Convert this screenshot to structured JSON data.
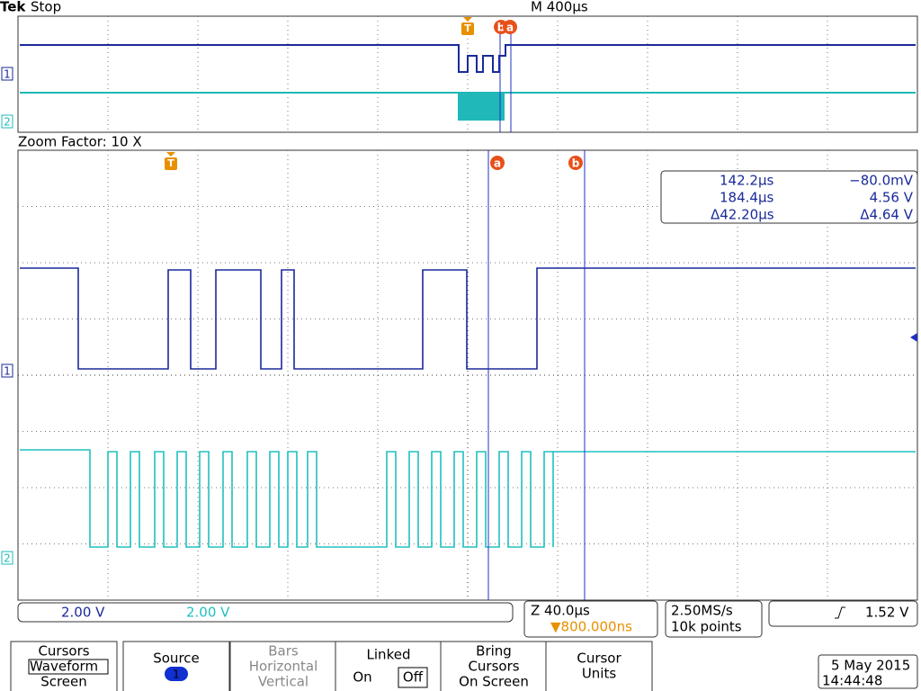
{
  "header": {
    "brand": "Tek",
    "state": "Stop",
    "timebase": "M 400µs"
  },
  "markers": {
    "trigger": "T",
    "cursor_a": "a",
    "cursor_b": "b",
    "ch1": "1",
    "ch2": "2"
  },
  "zoom": "Zoom Factor: 10 X",
  "readout": {
    "a": {
      "time": "142.2µs",
      "value": "−80.0mV"
    },
    "b": {
      "time": "184.4µs",
      "value": "4.56 V"
    },
    "delta": {
      "time": "Δ42.20µs",
      "value": "Δ4.64 V"
    }
  },
  "status": {
    "ch1_scale": "2.00 V",
    "ch2_scale": "2.00 V",
    "zoom_time": "Z 40.0µs",
    "trigger_pos": "▼800.000ns",
    "sample_rate": "2.50MS/s",
    "record": "10k points",
    "trigger_level": "1.52 V"
  },
  "menu": [
    {
      "lines": [
        "Cursors",
        "Waveform",
        "Screen"
      ]
    },
    {
      "lines": [
        "Source"
      ]
    },
    {
      "lines": [
        "Bars",
        "Horizontal",
        "Vertical"
      ]
    },
    {
      "lines": [
        "Linked",
        "On",
        "Off"
      ]
    },
    {
      "lines": [
        "Bring",
        "Cursors",
        "On Screen"
      ]
    },
    {
      "lines": [
        "Cursor",
        "Units"
      ]
    }
  ],
  "date": "5 May 2015",
  "time": "14:44:48"
}
